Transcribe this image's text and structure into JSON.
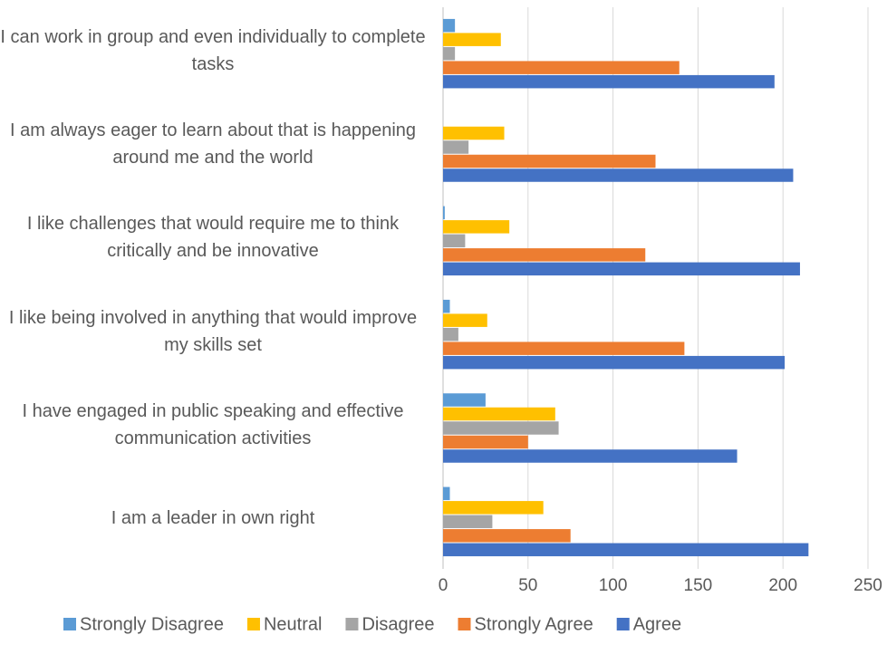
{
  "chart_data": {
    "type": "hbar",
    "categories": [
      "I can work in group and even individually to complete tasks",
      "I am always eager to learn about that is happening around me and the world",
      "I like challenges that would require me to think critically and be innovative",
      "I like being involved in anything that would improve my skills set",
      "I have engaged in public speaking and effective communication activities",
      "I am a leader in own right"
    ],
    "series": [
      {
        "name": "Strongly Disagree",
        "color": "#5b9bd5",
        "values": [
          7,
          0,
          1,
          4,
          25,
          4
        ]
      },
      {
        "name": "Neutral",
        "color": "#ffc000",
        "values": [
          34,
          36,
          39,
          26,
          66,
          59
        ]
      },
      {
        "name": "Disagree",
        "color": "#a5a5a5",
        "values": [
          7,
          15,
          13,
          9,
          68,
          29
        ]
      },
      {
        "name": "Strongly Agree",
        "color": "#ed7d31",
        "values": [
          139,
          125,
          119,
          142,
          50,
          75
        ]
      },
      {
        "name": "Agree",
        "color": "#4472c4",
        "values": [
          195,
          206,
          210,
          201,
          173,
          215
        ]
      }
    ],
    "xlim": [
      0,
      250
    ],
    "xticks": [
      0,
      50,
      100,
      150,
      200,
      250
    ],
    "grid": true,
    "legend": "bottom"
  }
}
